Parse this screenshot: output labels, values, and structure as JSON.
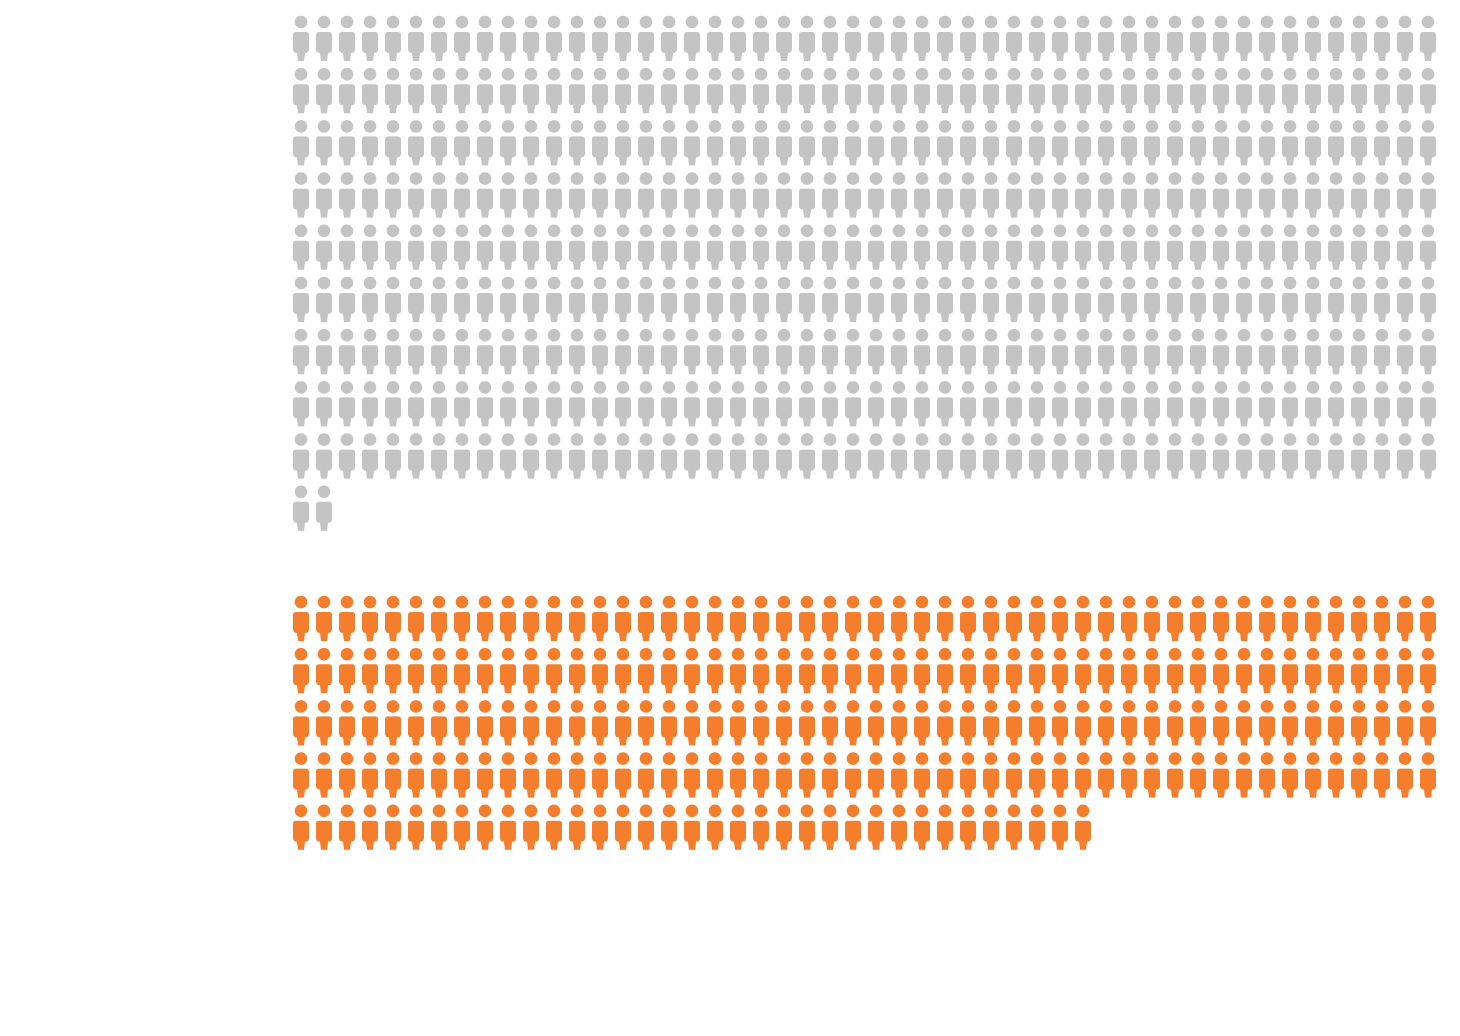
{
  "chart_data": {
    "type": "pictogram",
    "icon": "person-icon",
    "icons_per_row": 50,
    "series": [
      {
        "color": "#c4c4c4",
        "count": 452
      },
      {
        "color": "#f47e2c",
        "count": 235
      }
    ]
  }
}
